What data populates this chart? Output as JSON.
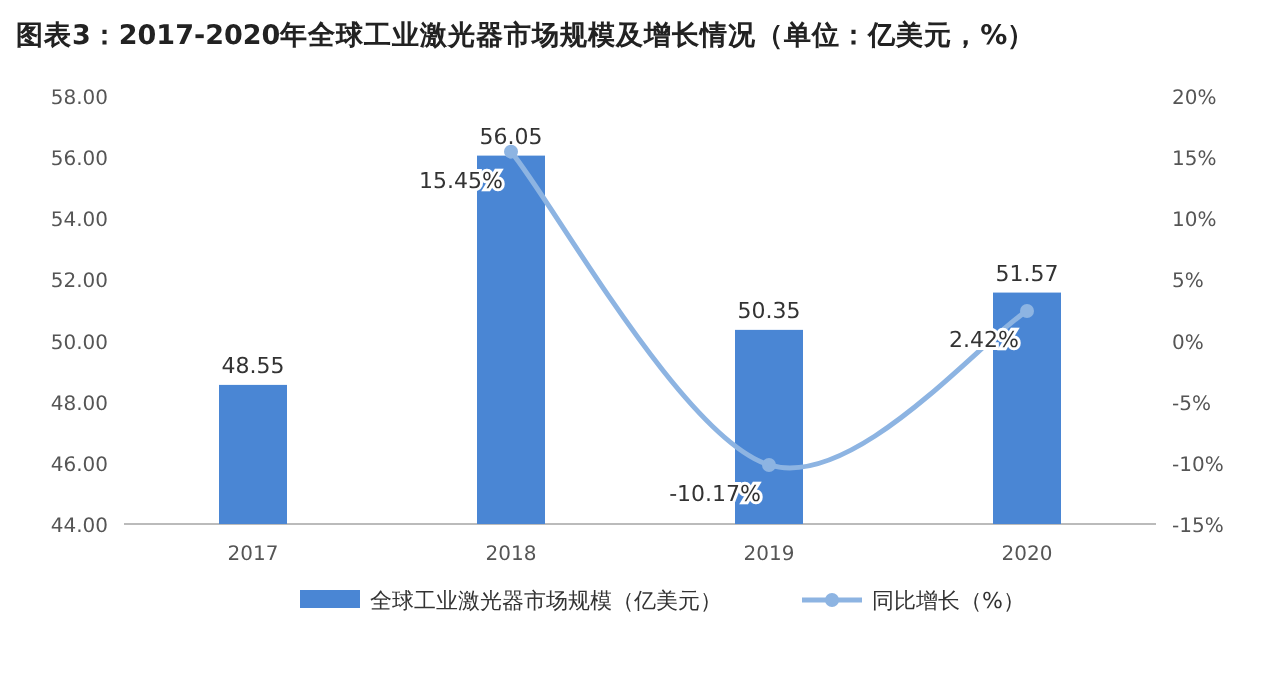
{
  "chart_data": {
    "type": "bar",
    "title": "图表3：2017-2020年全球工业激光器市场规模及增长情况（单位：亿美元，%）",
    "categories": [
      "2017",
      "2018",
      "2019",
      "2020"
    ],
    "series": [
      {
        "name": "全球工业激光器市场规模（亿美元）",
        "color": "#4a86d4",
        "values": [
          48.55,
          56.05,
          50.35,
          51.57
        ],
        "value_labels": [
          "48.55",
          "56.05",
          "50.35",
          "51.57"
        ]
      },
      {
        "name": "同比增长（%）",
        "type": "line",
        "axis": "y2",
        "color": "#8db4e2",
        "marker": "circle",
        "values": [
          null,
          15.45,
          -10.17,
          2.42
        ],
        "value_labels": [
          null,
          "15.45%",
          "-10.17%",
          "2.42%"
        ]
      }
    ],
    "ylim": [
      44,
      58
    ],
    "yticks": [
      {
        "value": 44,
        "label": "44.00"
      },
      {
        "value": 46,
        "label": "46.00"
      },
      {
        "value": 48,
        "label": "48.00"
      },
      {
        "value": 50,
        "label": "50.00"
      },
      {
        "value": 52,
        "label": "52.00"
      },
      {
        "value": 54,
        "label": "54.00"
      },
      {
        "value": 56,
        "label": "56.00"
      },
      {
        "value": 58,
        "label": "58.00"
      }
    ],
    "y2lim": [
      -15,
      20
    ],
    "y2ticks": [
      {
        "value": -15,
        "label": "-15%"
      },
      {
        "value": -10,
        "label": "-10%"
      },
      {
        "value": -5,
        "label": "-5%"
      },
      {
        "value": 0,
        "label": "0%"
      },
      {
        "value": 5,
        "label": "5%"
      },
      {
        "value": 10,
        "label": "10%"
      },
      {
        "value": 15,
        "label": "15%"
      },
      {
        "value": 20,
        "label": "20%"
      }
    ],
    "legend": "bottom"
  }
}
